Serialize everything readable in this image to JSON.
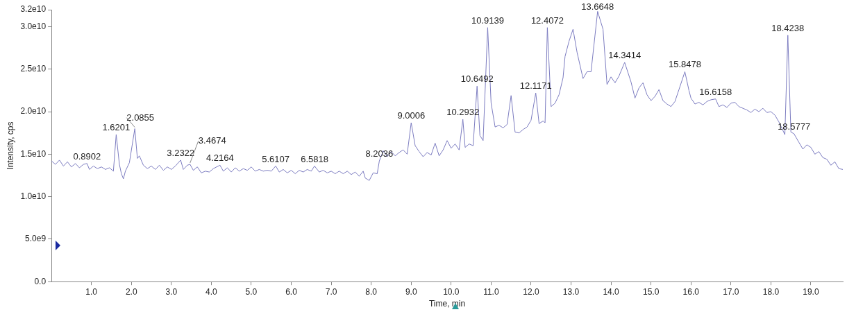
{
  "chart_data": {
    "type": "line",
    "xlabel": "Time, min",
    "ylabel": "Intensity, cps",
    "xlim": [
      0,
      19.8
    ],
    "xticks": [
      {
        "value": 1,
        "label": "1.0"
      },
      {
        "value": 2,
        "label": "2.0"
      },
      {
        "value": 3,
        "label": "3.0"
      },
      {
        "value": 4,
        "label": "4.0"
      },
      {
        "value": 5,
        "label": "5.0"
      },
      {
        "value": 6,
        "label": "6.0"
      },
      {
        "value": 7,
        "label": "7.0"
      },
      {
        "value": 8,
        "label": "8.0"
      },
      {
        "value": 9,
        "label": "9.0"
      },
      {
        "value": 10,
        "label": "10.0"
      },
      {
        "value": 11,
        "label": "11.0"
      },
      {
        "value": 12,
        "label": "12.0"
      },
      {
        "value": 13,
        "label": "13.0"
      },
      {
        "value": 14,
        "label": "14.0"
      },
      {
        "value": 15,
        "label": "15.0"
      },
      {
        "value": 16,
        "label": "16.0"
      },
      {
        "value": 17,
        "label": "17.0"
      },
      {
        "value": 18,
        "label": "18.0"
      },
      {
        "value": 19,
        "label": "19.0"
      }
    ],
    "ylim": [
      0,
      32000000000.0
    ],
    "yticks": [
      {
        "value": 0,
        "label": "0.0"
      },
      {
        "value": 5000000000.0,
        "label": "5.0e9"
      },
      {
        "value": 10000000000.0,
        "label": "1.0e10"
      },
      {
        "value": 15000000000.0,
        "label": "1.5e10"
      },
      {
        "value": 20000000000.0,
        "label": "2.0e10"
      },
      {
        "value": 25000000000.0,
        "label": "2.5e10"
      },
      {
        "value": 30000000000.0,
        "label": "3.0e10"
      },
      {
        "value": 32000000000.0,
        "label": "3.2e10"
      }
    ],
    "series": [
      {
        "color": "#7c7cc0",
        "x": [
          0.0,
          0.1,
          0.2,
          0.3,
          0.4,
          0.5,
          0.6,
          0.7,
          0.8,
          0.8902,
          0.95,
          1.05,
          1.15,
          1.25,
          1.35,
          1.45,
          1.55,
          1.6201,
          1.7,
          1.75,
          1.8,
          1.85,
          1.95,
          2.0855,
          2.15,
          2.2,
          2.3,
          2.4,
          2.5,
          2.6,
          2.7,
          2.8,
          2.9,
          3.0,
          3.1,
          3.2322,
          3.3,
          3.4,
          3.4674,
          3.55,
          3.65,
          3.75,
          3.85,
          3.95,
          4.05,
          4.2164,
          4.3,
          4.4,
          4.5,
          4.6,
          4.7,
          4.8,
          4.9,
          5.0,
          5.1,
          5.2,
          5.3,
          5.4,
          5.5,
          5.6107,
          5.7,
          5.8,
          5.9,
          6.0,
          6.1,
          6.2,
          6.3,
          6.4,
          6.5,
          6.5818,
          6.7,
          6.8,
          6.9,
          7.0,
          7.1,
          7.2,
          7.3,
          7.4,
          7.5,
          7.6,
          7.7,
          7.8,
          7.85,
          7.95,
          8.05,
          8.15,
          8.2036,
          8.3,
          8.4,
          8.5,
          8.6,
          8.7,
          8.8,
          8.9,
          9.0006,
          9.1,
          9.2,
          9.3,
          9.4,
          9.5,
          9.6,
          9.7,
          9.8,
          9.9,
          10.0,
          10.1,
          10.2,
          10.2932,
          10.35,
          10.45,
          10.55,
          10.6492,
          10.72,
          10.8,
          10.9139,
          11.0,
          11.1,
          11.2,
          11.3,
          11.4,
          11.5,
          11.6,
          11.7,
          11.8,
          11.9,
          12.0,
          12.1171,
          12.2,
          12.3,
          12.35,
          12.4072,
          12.5,
          12.6,
          12.7,
          12.8,
          12.85,
          12.95,
          13.05,
          13.15,
          13.3,
          13.4,
          13.5,
          13.6648,
          13.8,
          13.9,
          14.0,
          14.1,
          14.2,
          14.3414,
          14.5,
          14.6,
          14.7,
          14.8,
          14.9,
          15.0,
          15.1,
          15.2,
          15.3,
          15.4,
          15.5,
          15.6,
          15.7,
          15.8478,
          15.95,
          16.0,
          16.1,
          16.2,
          16.3,
          16.4,
          16.5,
          16.6158,
          16.7,
          16.8,
          16.9,
          17.0,
          17.1,
          17.2,
          17.3,
          17.4,
          17.5,
          17.6,
          17.7,
          17.8,
          17.9,
          18.0,
          18.1,
          18.2,
          18.35,
          18.4238,
          18.5,
          18.5777,
          18.7,
          18.8,
          18.9,
          19.0,
          19.1,
          19.2,
          19.3,
          19.4,
          19.5,
          19.6,
          19.7,
          19.8
        ],
        "values": [
          14200000000.0,
          13800000000.0,
          14300000000.0,
          13600000000.0,
          14100000000.0,
          13500000000.0,
          13900000000.0,
          13400000000.0,
          13800000000.0,
          13900000000.0,
          13200000000.0,
          13600000000.0,
          13300000000.0,
          13500000000.0,
          13200000000.0,
          13400000000.0,
          13000000000.0,
          17300000000.0,
          13800000000.0,
          12700000000.0,
          12100000000.0,
          13000000000.0,
          14000000000.0,
          18000000000.0,
          14500000000.0,
          14800000000.0,
          13700000000.0,
          13300000000.0,
          13600000000.0,
          13200000000.0,
          13700000000.0,
          13100000000.0,
          13500000000.0,
          13200000000.0,
          13600000000.0,
          14300000000.0,
          13200000000.0,
          13700000000.0,
          13800000000.0,
          13100000000.0,
          13500000000.0,
          12800000000.0,
          13000000000.0,
          12900000000.0,
          13300000000.0,
          13700000000.0,
          13000000000.0,
          13400000000.0,
          12900000000.0,
          13400000000.0,
          13000000000.0,
          13300000000.0,
          13100000000.0,
          13500000000.0,
          13000000000.0,
          13200000000.0,
          13000000000.0,
          13100000000.0,
          13000000000.0,
          13600000000.0,
          12900000000.0,
          13200000000.0,
          12800000000.0,
          13100000000.0,
          12700000000.0,
          13100000000.0,
          12900000000.0,
          13200000000.0,
          13000000000.0,
          13600000000.0,
          12900000000.0,
          13100000000.0,
          12800000000.0,
          13000000000.0,
          12700000000.0,
          13000000000.0,
          12700000000.0,
          13000000000.0,
          12600000000.0,
          12900000000.0,
          12400000000.0,
          13000000000.0,
          12200000000.0,
          11900000000.0,
          12800000000.0,
          12700000000.0,
          14200000000.0,
          15400000000.0,
          14700000000.0,
          15300000000.0,
          14800000000.0,
          15200000000.0,
          15500000000.0,
          15000000000.0,
          18700000000.0,
          16000000000.0,
          15300000000.0,
          14700000000.0,
          15200000000.0,
          14900000000.0,
          16300000000.0,
          14800000000.0,
          15500000000.0,
          16600000000.0,
          15700000000.0,
          16200000000.0,
          15500000000.0,
          19100000000.0,
          15800000000.0,
          16200000000.0,
          16000000000.0,
          23000000000.0,
          17200000000.0,
          16600000000.0,
          29900000000.0,
          21000000000.0,
          18200000000.0,
          18400000000.0,
          18100000000.0,
          18500000000.0,
          21900000000.0,
          17600000000.0,
          17500000000.0,
          17900000000.0,
          18200000000.0,
          19000000000.0,
          22200000000.0,
          18600000000.0,
          18900000000.0,
          18700000000.0,
          29900000000.0,
          20600000000.0,
          21000000000.0,
          22000000000.0,
          24000000000.0,
          26500000000.0,
          28300000000.0,
          29700000000.0,
          27000000000.0,
          23900000000.0,
          24700000000.0,
          24700000000.0,
          31800000000.0,
          29700000000.0,
          23200000000.0,
          24100000000.0,
          23400000000.0,
          24200000000.0,
          25800000000.0,
          23500000000.0,
          21600000000.0,
          22800000000.0,
          23400000000.0,
          22000000000.0,
          21300000000.0,
          21800000000.0,
          22600000000.0,
          21300000000.0,
          20900000000.0,
          20600000000.0,
          21200000000.0,
          22600000000.0,
          24700000000.0,
          22500000000.0,
          21600000000.0,
          20900000000.0,
          21100000000.0,
          20800000000.0,
          21200000000.0,
          21400000000.0,
          21500000000.0,
          20600000000.0,
          20800000000.0,
          20500000000.0,
          21000000000.0,
          21100000000.0,
          20600000000.0,
          20400000000.0,
          20200000000.0,
          19900000000.0,
          20300000000.0,
          20000000000.0,
          20400000000.0,
          19900000000.0,
          20000000000.0,
          19600000000.0,
          18800000000.0,
          17300000000.0,
          29000000000.0,
          17600000000.0,
          17400000000.0,
          16400000000.0,
          15600000000.0,
          16100000000.0,
          15800000000.0,
          15000000000.0,
          15300000000.0,
          14600000000.0,
          14400000000.0,
          13700000000.0,
          14100000000.0,
          13300000000.0,
          13200000000.0
        ]
      }
    ],
    "annotations": [
      {
        "text": "0.8902",
        "x": 0.8902,
        "y": 13900000000.0
      },
      {
        "text": "1.6201",
        "x": 1.6201,
        "y": 17300000000.0
      },
      {
        "text": "2.0855",
        "x": 2.0855,
        "y": 18000000000.0
      },
      {
        "text": "3.2322",
        "x": 3.2322,
        "y": 14300000000.0
      },
      {
        "text": "3.4674",
        "x": 3.4674,
        "y": 13800000000.0
      },
      {
        "text": "4.2164",
        "x": 4.2164,
        "y": 13700000000.0
      },
      {
        "text": "5.6107",
        "x": 5.6107,
        "y": 13600000000.0
      },
      {
        "text": "6.5818",
        "x": 6.5818,
        "y": 13600000000.0
      },
      {
        "text": "8.2036",
        "x": 8.2036,
        "y": 14200000000.0
      },
      {
        "text": "9.0006",
        "x": 9.0006,
        "y": 18700000000.0
      },
      {
        "text": "10.2932",
        "x": 10.2932,
        "y": 19100000000.0
      },
      {
        "text": "10.6492",
        "x": 10.6492,
        "y": 23000000000.0
      },
      {
        "text": "10.9139",
        "x": 10.9139,
        "y": 29900000000.0
      },
      {
        "text": "12.1171",
        "x": 12.1171,
        "y": 22200000000.0
      },
      {
        "text": "12.4072",
        "x": 12.4072,
        "y": 29900000000.0
      },
      {
        "text": "13.6648",
        "x": 13.6648,
        "y": 31800000000.0
      },
      {
        "text": "14.3414",
        "x": 14.3414,
        "y": 25800000000.0
      },
      {
        "text": "15.8478",
        "x": 15.8478,
        "y": 24700000000.0
      },
      {
        "text": "16.6158",
        "x": 16.6158,
        "y": 21500000000.0
      },
      {
        "text": "18.4238",
        "x": 18.4238,
        "y": 29000000000.0
      },
      {
        "text": "18.5777",
        "x": 18.5777,
        "y": 17400000000.0
      }
    ]
  }
}
